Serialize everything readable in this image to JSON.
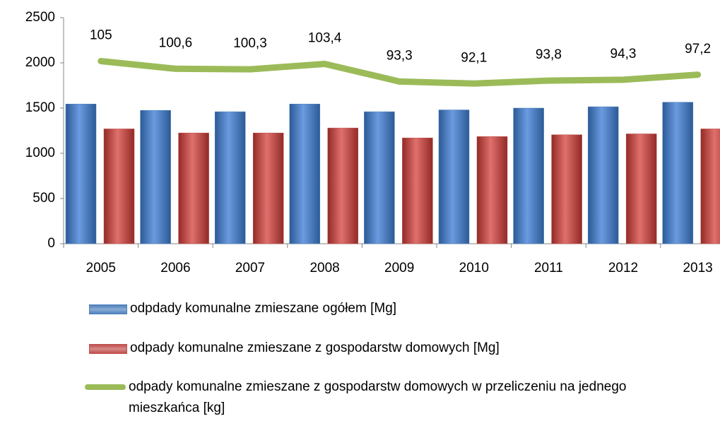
{
  "chart_data": {
    "type": "bar",
    "categories": [
      "2005",
      "2006",
      "2007",
      "2008",
      "2009",
      "2010",
      "2011",
      "2012",
      "2013"
    ],
    "series": [
      {
        "name": "odpdady komunalne zmieszane ogółem [Mg]",
        "type": "bar",
        "color": "#4f81bd",
        "values": [
          1545,
          1475,
          1460,
          1545,
          1460,
          1480,
          1500,
          1515,
          1565
        ]
      },
      {
        "name": "odpady komunalne zmieszane z gospodarstw domowych [Mg]",
        "type": "bar",
        "color": "#c0504d",
        "values": [
          1270,
          1225,
          1225,
          1280,
          1170,
          1185,
          1205,
          1215,
          1270
        ]
      },
      {
        "name": "odpady komunalne zmieszane z gospodarstw domowych w przeliczeniu na jednego mieszkańca [kg]",
        "type": "line",
        "axis": "y2",
        "color": "#9bbb59",
        "values": [
          105,
          100.6,
          100.3,
          103.4,
          93.3,
          92.1,
          93.8,
          94.3,
          97.2
        ],
        "value_labels": [
          "105",
          "100,6",
          "100,3",
          "103,4",
          "93,3",
          "92,1",
          "93,8",
          "94,3",
          "97,2"
        ]
      }
    ],
    "ylim": [
      0,
      2500
    ],
    "yticks": [
      0,
      500,
      1000,
      1500,
      2000,
      2500
    ],
    "y2lim": [
      0,
      130
    ],
    "legend": "bottom"
  }
}
